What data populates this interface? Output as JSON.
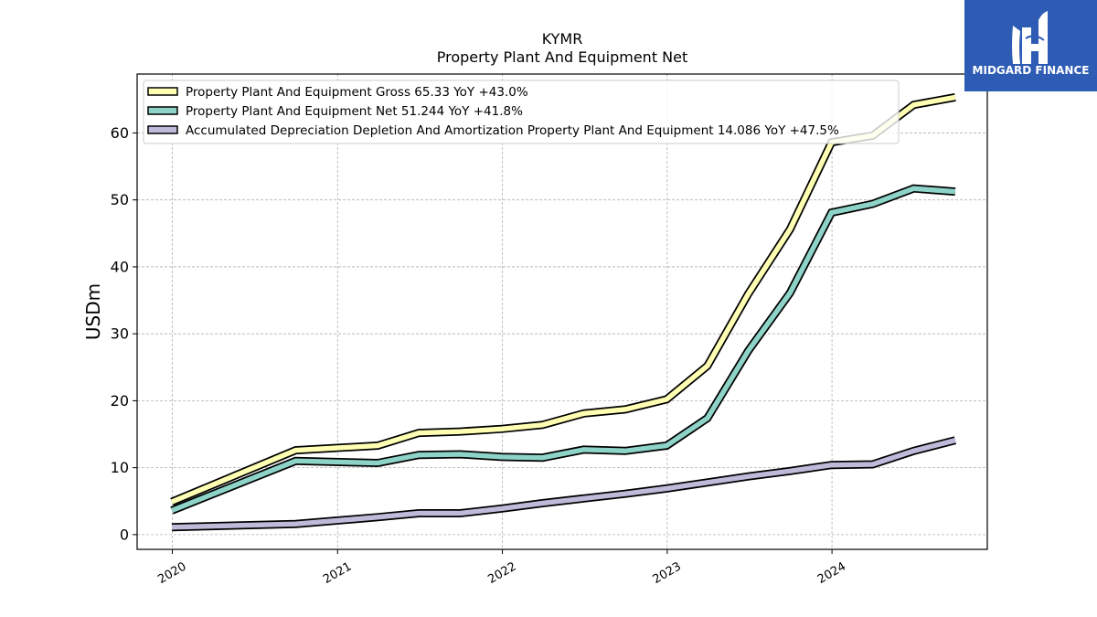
{
  "chart_data": {
    "type": "line",
    "title": "KYMR",
    "subtitle": "Property Plant And Equipment Net",
    "xlabel": "",
    "ylabel": "USDm",
    "x_ticks": [
      "2020",
      "2021",
      "2022",
      "2023",
      "2024"
    ],
    "y_ticks": [
      0,
      10,
      20,
      30,
      40,
      50,
      60
    ],
    "ylim": [
      -2.2,
      68.8
    ],
    "xlim": [
      "2019-10-15",
      "2024-12-10"
    ],
    "grid": true,
    "legend_position": "top-left",
    "x": [
      "2019-12-31",
      "2020-09-30",
      "2021-03-31",
      "2021-06-30",
      "2021-09-30",
      "2021-12-31",
      "2022-03-31",
      "2022-06-30",
      "2022-09-30",
      "2022-12-31",
      "2023-03-31",
      "2023-06-30",
      "2023-09-30",
      "2023-12-31",
      "2024-03-31",
      "2024-06-30",
      "2024-09-30"
    ],
    "series": [
      {
        "name": "Property Plant And Equipment Gross",
        "legend_label": "Property Plant And Equipment Gross  65.33 YoY +43.0%",
        "color": "#ffffb3",
        "values": [
          4.9,
          12.6,
          13.3,
          15.2,
          15.4,
          15.8,
          16.4,
          18.1,
          18.7,
          20.2,
          25.2,
          36.0,
          45.6,
          58.6,
          59.6,
          64.2,
          65.33
        ]
      },
      {
        "name": "Property Plant And Equipment Net",
        "legend_label": "Property Plant And Equipment Net  51.244 YoY +41.8%",
        "color": "#8dd3c7",
        "values": [
          3.6,
          11.0,
          10.7,
          11.9,
          12.0,
          11.6,
          11.5,
          12.7,
          12.5,
          13.3,
          17.4,
          27.5,
          36.1,
          48.1,
          49.4,
          51.7,
          51.244
        ]
      },
      {
        "name": "Accumulated Depreciation Depletion And Amortization Property Plant And Equipment",
        "legend_label": "Accumulated Depreciation Depletion And Amortization Property Plant And Equipment  14.086 YoY +47.5%",
        "color": "#bebada",
        "values": [
          1.1,
          1.6,
          2.6,
          3.2,
          3.2,
          3.9,
          4.7,
          5.4,
          6.1,
          6.9,
          7.8,
          8.7,
          9.5,
          10.4,
          10.5,
          12.5,
          14.086
        ]
      }
    ]
  },
  "brand": {
    "name": "MIDGARD FINANCE",
    "color": "#2e5bb4"
  }
}
